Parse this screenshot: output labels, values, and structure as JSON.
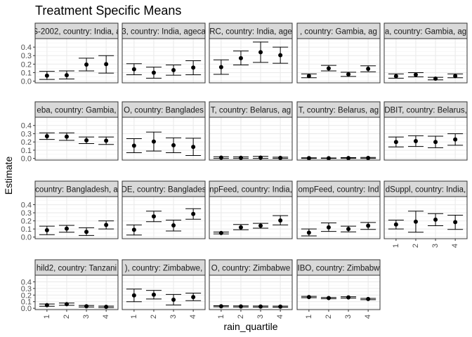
{
  "chart_data": {
    "type": "errorbar",
    "title": "Treatment Specific Means",
    "xlabel": "rain_quartile",
    "ylabel": "Estimate",
    "ylim": [
      -0.02,
      0.5
    ],
    "y_ticks": [
      "0.0",
      "0.1",
      "0.2",
      "0.3",
      "0.4"
    ],
    "x_ticks": [
      "1",
      "2",
      "3",
      "4"
    ],
    "grid": true,
    "theme": "bw",
    "panels": [
      {
        "strip": "S-2002, country: India, a",
        "est": [
          0.065,
          0.07,
          0.195,
          0.2
        ],
        "lower": [
          0.02,
          0.025,
          0.12,
          0.095
        ],
        "upper": [
          0.115,
          0.12,
          0.27,
          0.3
        ]
      },
      {
        "strip": "3, country: India, ageca",
        "est": [
          0.14,
          0.1,
          0.13,
          0.16
        ],
        "lower": [
          0.075,
          0.035,
          0.07,
          0.075
        ],
        "upper": [
          0.205,
          0.165,
          0.19,
          0.24
        ]
      },
      {
        "strip": "RC, country: India, age",
        "est": [
          0.165,
          0.27,
          0.34,
          0.305
        ],
        "lower": [
          0.08,
          0.19,
          0.22,
          0.21
        ],
        "upper": [
          0.25,
          0.355,
          0.46,
          0.4
        ]
      },
      {
        "strip": ", country: Gambia, ag",
        "est": [
          0.06,
          0.15,
          0.08,
          0.145
        ],
        "lower": [
          0.04,
          0.12,
          0.055,
          0.11
        ],
        "upper": [
          0.085,
          0.185,
          0.105,
          0.18
        ]
      },
      {
        "strip": "a, country: Gambia, ag",
        "est": [
          0.058,
          0.075,
          0.03,
          0.06
        ],
        "lower": [
          0.035,
          0.05,
          0.015,
          0.04
        ],
        "upper": [
          0.085,
          0.1,
          0.045,
          0.085
        ]
      },
      {
        "strip": "eba, country: Gambia, ",
        "est": [
          0.27,
          0.265,
          0.22,
          0.215
        ],
        "lower": [
          0.23,
          0.22,
          0.18,
          0.17
        ],
        "upper": [
          0.31,
          0.31,
          0.26,
          0.26
        ]
      },
      {
        "strip": "O, country: Banglades",
        "est": [
          0.155,
          0.205,
          0.16,
          0.14
        ],
        "lower": [
          0.07,
          0.09,
          0.07,
          0.035
        ],
        "upper": [
          0.24,
          0.32,
          0.25,
          0.245
        ]
      },
      {
        "strip": "T, country: Belarus, ag",
        "est": [
          0.01,
          0.008,
          0.01,
          0.007
        ],
        "lower": [
          0.0,
          0.0,
          0.0,
          0.0
        ],
        "upper": [
          0.02,
          0.018,
          0.025,
          0.015
        ]
      },
      {
        "strip": "T, country: Belarus, ag",
        "est": [
          0.003,
          0.002,
          0.004,
          0.006
        ],
        "lower": [
          0.0,
          0.0,
          0.0,
          0.0
        ],
        "upper": [
          0.008,
          0.006,
          0.01,
          0.012
        ]
      },
      {
        "strip": "DBIT, country: Belarus, ",
        "est": [
          0.2,
          0.21,
          0.2,
          0.23
        ],
        "lower": [
          0.14,
          0.145,
          0.13,
          0.16
        ],
        "upper": [
          0.26,
          0.275,
          0.27,
          0.3
        ]
      },
      {
        "strip": "country: Bangladesh, a",
        "est": [
          0.085,
          0.105,
          0.065,
          0.15
        ],
        "lower": [
          0.03,
          0.06,
          0.02,
          0.1
        ],
        "upper": [
          0.135,
          0.145,
          0.115,
          0.2
        ]
      },
      {
        "strip": "DE, country: Banglades",
        "est": [
          0.09,
          0.255,
          0.145,
          0.285
        ],
        "lower": [
          0.025,
          0.19,
          0.075,
          0.22
        ],
        "upper": [
          0.15,
          0.32,
          0.21,
          0.35
        ]
      },
      {
        "strip": "npFeed, country: India,",
        "est": [
          0.05,
          0.12,
          0.14,
          0.205
        ],
        "lower": [
          0.04,
          0.09,
          0.11,
          0.15
        ],
        "upper": [
          0.062,
          0.155,
          0.17,
          0.265
        ]
      },
      {
        "strip": "ompFeed, country: Ind",
        "est": [
          0.055,
          0.12,
          0.1,
          0.14
        ],
        "lower": [
          0.015,
          0.07,
          0.065,
          0.095
        ],
        "upper": [
          0.1,
          0.175,
          0.135,
          0.18
        ]
      },
      {
        "strip": "dSuppl, country: India,",
        "est": [
          0.155,
          0.19,
          0.215,
          0.185
        ],
        "lower": [
          0.1,
          0.06,
          0.14,
          0.095
        ],
        "upper": [
          0.21,
          0.32,
          0.29,
          0.27
        ]
      },
      {
        "strip": "hild2, country: Tanzani",
        "est": [
          0.048,
          0.062,
          0.03,
          0.022
        ],
        "lower": [
          0.03,
          0.045,
          0.02,
          0.012
        ],
        "upper": [
          0.065,
          0.08,
          0.043,
          0.033
        ]
      },
      {
        "strip": "), country: Zimbabwe,",
        "est": [
          0.195,
          0.205,
          0.13,
          0.17
        ],
        "lower": [
          0.1,
          0.14,
          0.05,
          0.115
        ],
        "upper": [
          0.29,
          0.27,
          0.21,
          0.23
        ]
      },
      {
        "strip": "O, country: Zimbabwe",
        "est": [
          0.03,
          0.028,
          0.026,
          0.025
        ],
        "lower": [
          0.022,
          0.02,
          0.018,
          0.017
        ],
        "upper": [
          0.038,
          0.036,
          0.034,
          0.033
        ]
      },
      {
        "strip": "IBO, country: Zimbabw",
        "est": [
          0.17,
          0.155,
          0.165,
          0.14
        ],
        "lower": [
          0.16,
          0.145,
          0.155,
          0.13
        ],
        "upper": [
          0.18,
          0.165,
          0.175,
          0.15
        ]
      }
    ]
  }
}
